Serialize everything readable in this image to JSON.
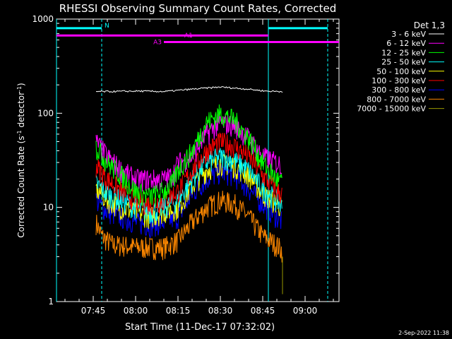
{
  "chart_data": {
    "type": "line",
    "title": "RHESSI Observing Summary Count Rates, Corrected",
    "xlabel": "Start Time (11-Dec-17 07:32:02)",
    "ylabel_main": "Corrected Count Rate (s",
    "ylabel_sup1": "-1",
    "ylabel_mid": " detector",
    "ylabel_sup2": "-1",
    "ylabel_end": ")",
    "y_scale": "log",
    "ylim": [
      1,
      1000
    ],
    "y_ticks": [
      {
        "value": 1,
        "label": "1"
      },
      {
        "value": 10,
        "label": "10"
      },
      {
        "value": 100,
        "label": "100"
      },
      {
        "value": 1000,
        "label": "1000"
      }
    ],
    "xlim": [
      "07:32",
      "09:12"
    ],
    "x_ticks": [
      {
        "t": "07:45",
        "label": "07:45"
      },
      {
        "t": "08:00",
        "label": "08:00"
      },
      {
        "t": "08:15",
        "label": "08:15"
      },
      {
        "t": "08:30",
        "label": "08:30"
      },
      {
        "t": "08:45",
        "label": "08:45"
      },
      {
        "t": "09:00",
        "label": "09:00"
      }
    ],
    "legend_title": "Det 1,3",
    "legend_position": "right",
    "series": [
      {
        "name": "3 - 6 keV",
        "color": "#ffffff",
        "points": [
          [
            "07:46",
            170
          ],
          [
            "07:52",
            170
          ],
          [
            "08:00",
            172
          ],
          [
            "08:10",
            170
          ],
          [
            "08:20",
            180
          ],
          [
            "08:30",
            190
          ],
          [
            "08:40",
            180
          ],
          [
            "08:46",
            172
          ],
          [
            "08:52",
            170
          ]
        ]
      },
      {
        "name": "6 - 12 keV",
        "color": "#ff00ff",
        "points": [
          [
            "07:46",
            50
          ],
          [
            "07:50",
            35
          ],
          [
            "07:55",
            25
          ],
          [
            "08:00",
            20
          ],
          [
            "08:05",
            20
          ],
          [
            "08:10",
            20
          ],
          [
            "08:13",
            22
          ],
          [
            "08:15",
            30
          ],
          [
            "08:20",
            35
          ],
          [
            "08:25",
            60
          ],
          [
            "08:30",
            80
          ],
          [
            "08:35",
            75
          ],
          [
            "08:40",
            55
          ],
          [
            "08:45",
            35
          ],
          [
            "08:50",
            30
          ],
          [
            "08:52",
            28
          ]
        ]
      },
      {
        "name": "12 - 25 keV",
        "color": "#00ff00",
        "points": [
          [
            "07:46",
            45
          ],
          [
            "07:50",
            30
          ],
          [
            "07:55",
            22
          ],
          [
            "08:00",
            15
          ],
          [
            "08:05",
            13
          ],
          [
            "08:10",
            15
          ],
          [
            "08:13",
            18
          ],
          [
            "08:15",
            25
          ],
          [
            "08:20",
            40
          ],
          [
            "08:25",
            80
          ],
          [
            "08:30",
            100
          ],
          [
            "08:35",
            85
          ],
          [
            "08:40",
            55
          ],
          [
            "08:45",
            30
          ],
          [
            "08:50",
            20
          ],
          [
            "08:52",
            18
          ]
        ]
      },
      {
        "name": "25 - 50 keV",
        "color": "#00ffff",
        "points": [
          [
            "07:46",
            18
          ],
          [
            "07:50",
            14
          ],
          [
            "07:55",
            12
          ],
          [
            "08:00",
            10
          ],
          [
            "08:05",
            9
          ],
          [
            "08:10",
            10
          ],
          [
            "08:15",
            12
          ],
          [
            "08:20",
            20
          ],
          [
            "08:25",
            30
          ],
          [
            "08:30",
            35
          ],
          [
            "08:35",
            32
          ],
          [
            "08:40",
            25
          ],
          [
            "08:45",
            16
          ],
          [
            "08:50",
            12
          ],
          [
            "08:52",
            10
          ]
        ]
      },
      {
        "name": "50 - 100 keV",
        "color": "#ffff00",
        "points": [
          [
            "07:46",
            16
          ],
          [
            "07:50",
            12
          ],
          [
            "07:55",
            10
          ],
          [
            "08:00",
            9
          ],
          [
            "08:05",
            8
          ],
          [
            "08:10",
            9
          ],
          [
            "08:15",
            10
          ],
          [
            "08:20",
            17
          ],
          [
            "08:25",
            25
          ],
          [
            "08:30",
            30
          ],
          [
            "08:35",
            28
          ],
          [
            "08:40",
            22
          ],
          [
            "08:45",
            14
          ],
          [
            "08:50",
            11
          ],
          [
            "08:52",
            10
          ]
        ]
      },
      {
        "name": "100 - 300 keV",
        "color": "#ff0000",
        "points": [
          [
            "07:46",
            28
          ],
          [
            "07:50",
            20
          ],
          [
            "07:55",
            15
          ],
          [
            "08:00",
            12
          ],
          [
            "08:05",
            11
          ],
          [
            "08:10",
            12
          ],
          [
            "08:15",
            15
          ],
          [
            "08:20",
            25
          ],
          [
            "08:25",
            40
          ],
          [
            "08:30",
            50
          ],
          [
            "08:35",
            45
          ],
          [
            "08:40",
            35
          ],
          [
            "08:45",
            22
          ],
          [
            "08:50",
            15
          ],
          [
            "08:52",
            14
          ]
        ]
      },
      {
        "name": "300 - 800 keV",
        "color": "#0000ff",
        "points": [
          [
            "07:46",
            12
          ],
          [
            "07:50",
            9
          ],
          [
            "07:55",
            8
          ],
          [
            "08:00",
            7
          ],
          [
            "08:05",
            6.5
          ],
          [
            "08:10",
            7
          ],
          [
            "08:15",
            8
          ],
          [
            "08:20",
            14
          ],
          [
            "08:25",
            20
          ],
          [
            "08:30",
            24
          ],
          [
            "08:35",
            22
          ],
          [
            "08:40",
            16
          ],
          [
            "08:45",
            11
          ],
          [
            "08:50",
            8
          ],
          [
            "08:52",
            7
          ]
        ]
      },
      {
        "name": "800 - 7000 keV",
        "color": "#ff8800",
        "points": [
          [
            "07:46",
            7
          ],
          [
            "07:48",
            5
          ],
          [
            "07:52",
            4
          ],
          [
            "07:55",
            4
          ],
          [
            "08:00",
            3.8
          ],
          [
            "08:05",
            3.8
          ],
          [
            "08:10",
            3.8
          ],
          [
            "08:15",
            4.5
          ],
          [
            "08:20",
            7
          ],
          [
            "08:25",
            10
          ],
          [
            "08:30",
            12
          ],
          [
            "08:35",
            11
          ],
          [
            "08:40",
            8
          ],
          [
            "08:45",
            5
          ],
          [
            "08:50",
            4
          ],
          [
            "08:52",
            3.5
          ]
        ]
      },
      {
        "name": "7000 - 15000 keV",
        "color": "#999900",
        "points": [
          [
            "08:52",
            1.2
          ]
        ]
      }
    ],
    "annotations": [
      {
        "label": "N",
        "color": "#00ffff"
      },
      {
        "label": "A1",
        "color": "#ff00ff"
      },
      {
        "label": "A3",
        "color": "#ff00ff"
      }
    ],
    "attenuator_bars": [
      {
        "label": "N",
        "color": "#00ffff",
        "start": "07:32",
        "end": "07:48",
        "y": 800
      },
      {
        "label": "N",
        "color": "#00ffff",
        "start": "08:47",
        "end": "09:08",
        "y": 800
      },
      {
        "label": "A1",
        "color": "#ff00ff",
        "start": "07:32",
        "end": "08:47",
        "y": 670
      },
      {
        "label": "A3",
        "color": "#ff00ff",
        "start": "08:10",
        "end": "09:12",
        "y": 570
      }
    ],
    "vlines": [
      {
        "t": "07:32",
        "color": "#00ffff",
        "style": "solid"
      },
      {
        "t": "07:48",
        "color": "#00ffff",
        "style": "dashed"
      },
      {
        "t": "08:47",
        "color": "#00ffff",
        "style": "solid"
      },
      {
        "t": "09:08",
        "color": "#00ffff",
        "style": "dashed"
      }
    ]
  },
  "footer_timestamp": "2-Sep-2022 11:38"
}
